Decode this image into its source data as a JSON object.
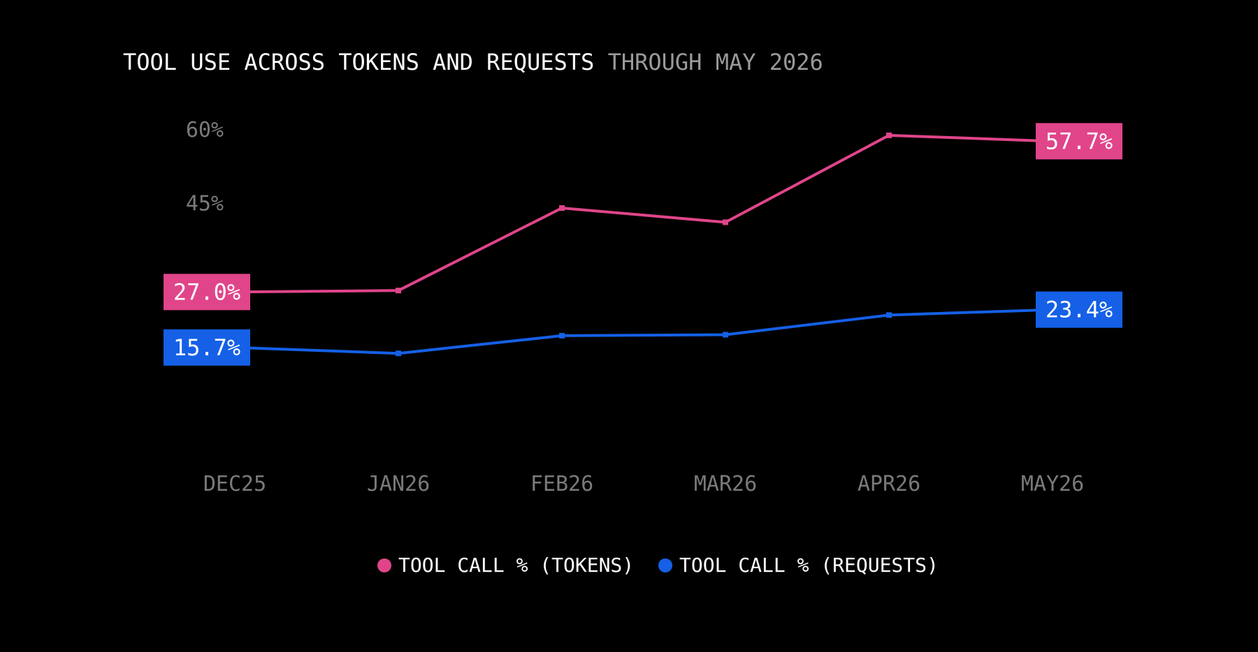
{
  "chart_data": {
    "type": "line",
    "title": "TOOL USE ACROSS TOKENS AND REQUESTS",
    "subtitle": "THROUGH MAY 2026",
    "categories": [
      "DEC25",
      "JAN26",
      "FEB26",
      "MAR26",
      "APR26",
      "MAY26"
    ],
    "y_ticks": [
      {
        "value": 60,
        "label": "60%"
      },
      {
        "value": 45,
        "label": "45%"
      }
    ],
    "ylim": [
      6,
      64
    ],
    "grid": false,
    "legend_position": "bottom-center",
    "series": [
      {
        "name": "TOOL CALL % (TOKENS)",
        "color": "#e0458a",
        "values": [
          27.0,
          27.3,
          44.1,
          41.2,
          58.9,
          57.7
        ],
        "end_labels": {
          "first": "27.0%",
          "last": "57.7%"
        }
      },
      {
        "name": "TOOL CALL % (REQUESTS)",
        "color": "#1560e6",
        "values": [
          15.7,
          14.5,
          18.1,
          18.3,
          22.3,
          23.4
        ],
        "end_labels": {
          "first": "15.7%",
          "last": "23.4%"
        }
      }
    ]
  }
}
